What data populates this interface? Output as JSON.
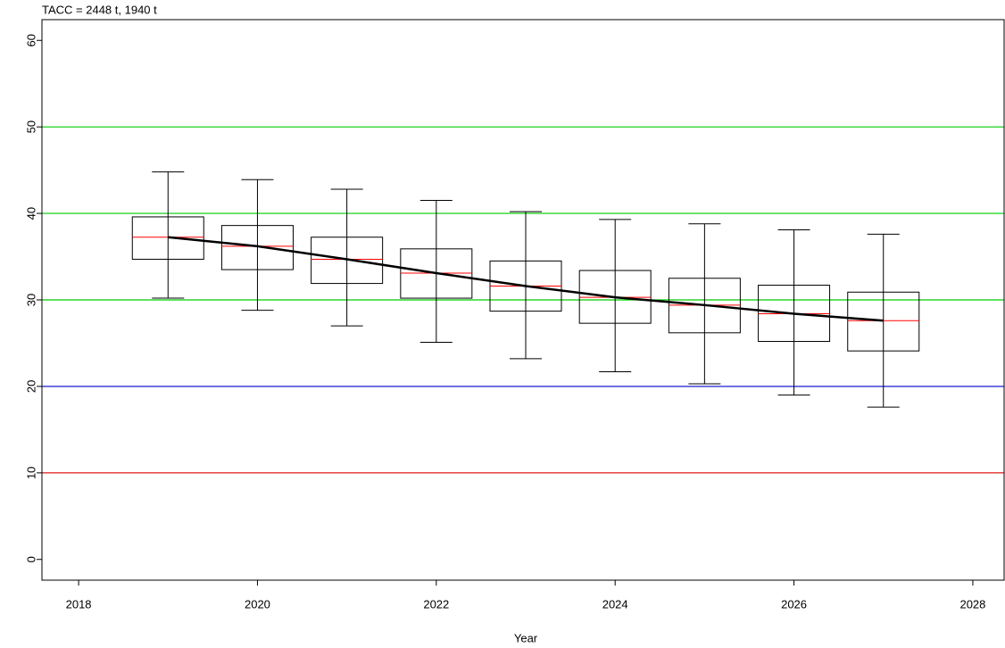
{
  "chart_data": {
    "type": "box",
    "title": "TACC = 2448 t, 1940 t",
    "x_label": "Year",
    "x": [
      2019,
      2020,
      2021,
      2022,
      2023,
      2024,
      2025,
      2026,
      2027
    ],
    "low": [
      30.2,
      28.8,
      27.0,
      25.1,
      23.2,
      21.7,
      20.3,
      19.0,
      17.6
    ],
    "q1": [
      34.7,
      33.5,
      31.9,
      30.2,
      28.7,
      27.3,
      26.2,
      25.2,
      24.1
    ],
    "median": [
      37.25,
      36.2,
      34.7,
      33.1,
      31.6,
      30.3,
      29.4,
      28.4,
      27.6
    ],
    "q3": [
      39.6,
      38.6,
      37.25,
      35.9,
      34.5,
      33.4,
      32.5,
      31.7,
      30.9
    ],
    "high": [
      44.8,
      43.9,
      42.8,
      41.5,
      40.2,
      39.3,
      38.8,
      38.1,
      37.6
    ],
    "line": [
      37.25,
      36.2,
      34.7,
      33.1,
      31.6,
      30.3,
      29.4,
      28.4,
      27.6
    ],
    "box_color": "#000000",
    "median_color": "#ff0000",
    "line_color": "#000000",
    "reference_lines": [
      {
        "value": 50,
        "color": "#00cc00"
      },
      {
        "value": 40,
        "color": "#00cc00"
      },
      {
        "value": 30,
        "color": "#00cc00"
      },
      {
        "value": 20,
        "color": "#0000cc"
      },
      {
        "value": 10,
        "color": "#dd0000"
      }
    ],
    "xlim": [
      2017.59,
      2028.35
    ],
    "ylim": [
      -2.4,
      62.4
    ],
    "xticks": [
      2018,
      2020,
      2022,
      2024,
      2026,
      2028
    ],
    "yticks": [
      0,
      10,
      20,
      30,
      40,
      50,
      60
    ]
  }
}
